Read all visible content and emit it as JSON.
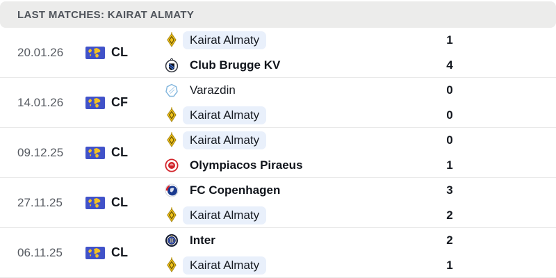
{
  "header": {
    "title": "LAST MATCHES: KAIRAT ALMATY"
  },
  "competition_flag_icon": "world-flag-icon",
  "colors": {
    "header_bg": "#ececeb",
    "header_text": "#50555c",
    "row_divider": "#e9e9e9",
    "date_text": "#565a61",
    "team_text": "#171b22",
    "highlight_pill_bg": "#e9f0fb",
    "flag_blue": "#4152c9",
    "flag_yellow": "#f4c222",
    "kairat_gold": "#f1c319",
    "olympiacos_red": "#d2232a",
    "copenhagen_blue": "#1a3a8f",
    "inter_navy": "#141b30",
    "varazdin_blue": "#85b8de"
  },
  "matches": [
    {
      "date": "20.01.26",
      "competition": "CL",
      "home": {
        "name": "Kairat Almaty",
        "score": "1",
        "logo_icon": "kairat-almaty-crest",
        "highlighted": true,
        "winner": false
      },
      "away": {
        "name": "Club Brugge KV",
        "score": "4",
        "logo_icon": "club-brugge-crest",
        "highlighted": false,
        "winner": true
      }
    },
    {
      "date": "14.01.26",
      "competition": "CF",
      "home": {
        "name": "Varazdin",
        "score": "0",
        "logo_icon": "varazdin-crest",
        "highlighted": false,
        "winner": false
      },
      "away": {
        "name": "Kairat Almaty",
        "score": "0",
        "logo_icon": "kairat-almaty-crest",
        "highlighted": true,
        "winner": false
      }
    },
    {
      "date": "09.12.25",
      "competition": "CL",
      "home": {
        "name": "Kairat Almaty",
        "score": "0",
        "logo_icon": "kairat-almaty-crest",
        "highlighted": true,
        "winner": false
      },
      "away": {
        "name": "Olympiacos Piraeus",
        "score": "1",
        "logo_icon": "olympiacos-crest",
        "highlighted": false,
        "winner": true
      }
    },
    {
      "date": "27.11.25",
      "competition": "CL",
      "home": {
        "name": "FC Copenhagen",
        "score": "3",
        "logo_icon": "fc-copenhagen-crest",
        "highlighted": false,
        "winner": true
      },
      "away": {
        "name": "Kairat Almaty",
        "score": "2",
        "logo_icon": "kairat-almaty-crest",
        "highlighted": true,
        "winner": false
      }
    },
    {
      "date": "06.11.25",
      "competition": "CL",
      "home": {
        "name": "Inter",
        "score": "2",
        "logo_icon": "inter-crest",
        "highlighted": false,
        "winner": true
      },
      "away": {
        "name": "Kairat Almaty",
        "score": "1",
        "logo_icon": "kairat-almaty-crest",
        "highlighted": true,
        "winner": false
      }
    }
  ]
}
